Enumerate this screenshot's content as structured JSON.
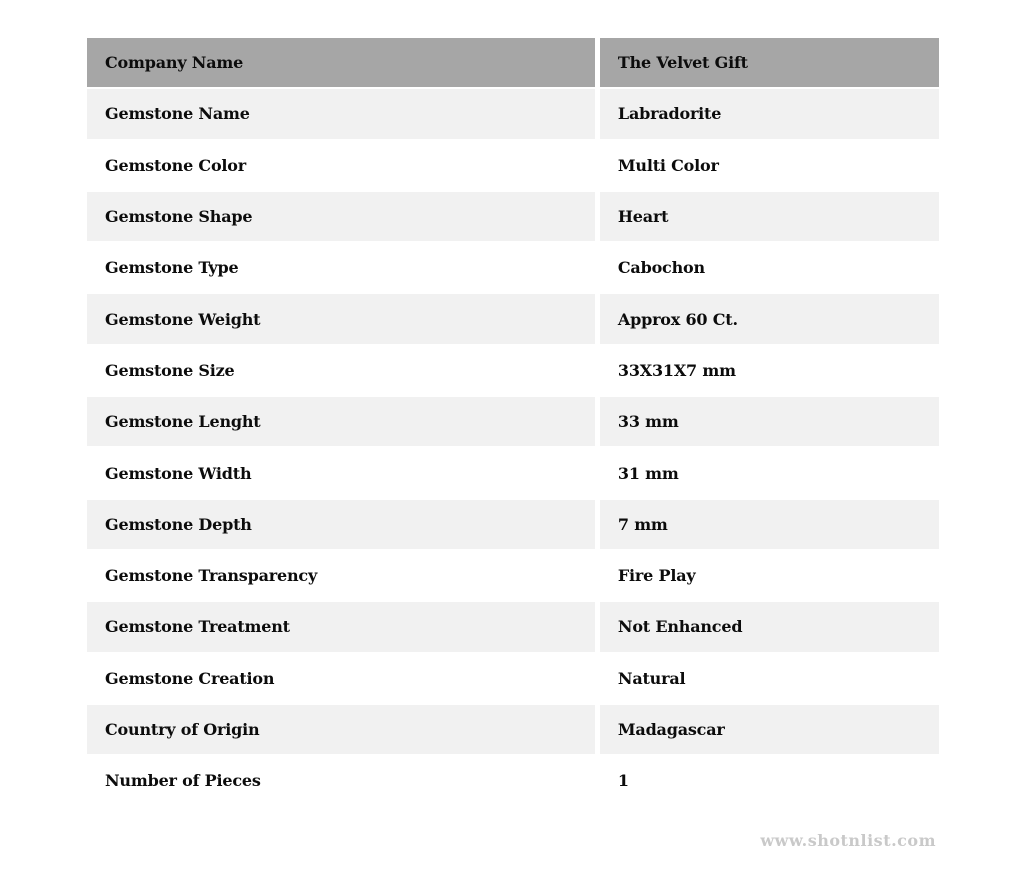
{
  "table": {
    "header": {
      "label": "Company Name",
      "value": "The Velvet Gift"
    },
    "rows": [
      {
        "label": "Gemstone Name",
        "value": "Labradorite"
      },
      {
        "label": "Gemstone Color",
        "value": "Multi Color"
      },
      {
        "label": "Gemstone Shape",
        "value": "Heart"
      },
      {
        "label": "Gemstone Type",
        "value": "Cabochon"
      },
      {
        "label": "Gemstone Weight",
        "value": "Approx 60 Ct."
      },
      {
        "label": "Gemstone Size",
        "value": "33X31X7 mm"
      },
      {
        "label": "Gemstone Lenght",
        "value": "33 mm"
      },
      {
        "label": "Gemstone Width",
        "value": "31 mm"
      },
      {
        "label": "Gemstone Depth",
        "value": "7 mm"
      },
      {
        "label": "Gemstone Transparency",
        "value": "Fire Play"
      },
      {
        "label": "Gemstone Treatment",
        "value": "Not Enhanced"
      },
      {
        "label": "Gemstone Creation",
        "value": "Natural"
      },
      {
        "label": "Country of Origin",
        "value": "Madagascar"
      },
      {
        "label": "Number of Pieces",
        "value": "1"
      }
    ],
    "colors": {
      "header_bg": "#a6a6a6",
      "row_alt_bg": "#f1f1f1",
      "row_bg": "#ffffff",
      "text": "#0c0c0c",
      "separator": "#ffffff"
    }
  },
  "footer": {
    "watermark": "www.shotnlist.com",
    "watermark_color": "#c9c9c9"
  }
}
